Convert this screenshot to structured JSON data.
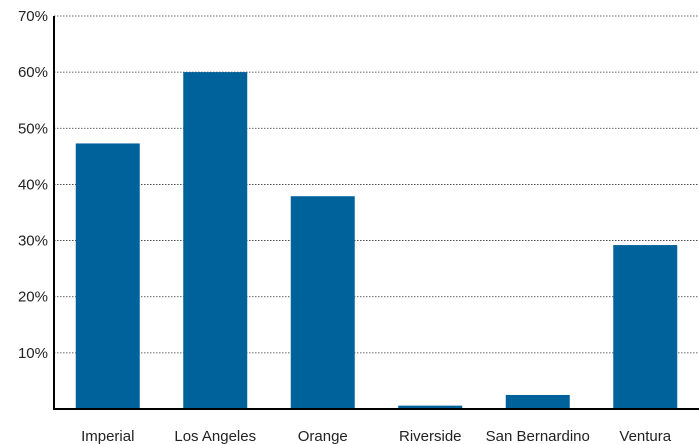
{
  "chart_data": {
    "type": "bar",
    "categories": [
      "Imperial",
      "Los Angeles",
      "Orange",
      "Riverside",
      "San Bernardino",
      "Ventura"
    ],
    "values": [
      47.3,
      60.0,
      37.9,
      0.6,
      2.5,
      29.2
    ],
    "yticks": [
      "10%",
      "20%",
      "30%",
      "40%",
      "50%",
      "60%",
      "70%"
    ],
    "ytick_values": [
      10,
      20,
      30,
      40,
      50,
      60,
      70
    ],
    "ylim": [
      0,
      70
    ],
    "grid": true,
    "bar_color": "#00629B",
    "title": "",
    "xlabel": "",
    "ylabel": ""
  }
}
